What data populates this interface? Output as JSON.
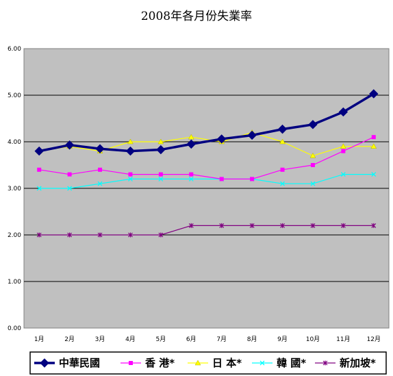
{
  "chart_data": {
    "type": "line",
    "title": "2008年各月份失業率",
    "xlabel": "",
    "ylabel": "",
    "categories": [
      "1月",
      "2月",
      "3月",
      "4月",
      "5月",
      "6月",
      "7月",
      "8月",
      "9月",
      "10月",
      "11月",
      "12月"
    ],
    "ylim": [
      0,
      6
    ],
    "yticks": [
      "0.00",
      "1.00",
      "2.00",
      "3.00",
      "4.00",
      "5.00",
      "6.00"
    ],
    "grid": true,
    "legend_position": "bottom",
    "series": [
      {
        "name": "中華民國",
        "color": "#000080",
        "marker": "diamond",
        "values": [
          3.8,
          3.93,
          3.85,
          3.8,
          3.83,
          3.95,
          4.06,
          4.14,
          4.27,
          4.37,
          4.64,
          5.03
        ]
      },
      {
        "name": "香 港*",
        "color": "#ff00ff",
        "marker": "square",
        "values": [
          3.4,
          3.3,
          3.4,
          3.3,
          3.3,
          3.3,
          3.2,
          3.2,
          3.4,
          3.5,
          3.8,
          4.1
        ]
      },
      {
        "name": "日 本*",
        "color": "#ffff00",
        "marker": "triangle",
        "values": [
          3.8,
          3.9,
          3.8,
          4.0,
          4.0,
          4.1,
          4.0,
          4.2,
          4.0,
          3.7,
          3.9,
          3.9
        ]
      },
      {
        "name": "韓 國*",
        "color": "#00ffff",
        "marker": "x",
        "values": [
          3.0,
          3.0,
          3.1,
          3.2,
          3.2,
          3.2,
          3.2,
          3.2,
          3.1,
          3.1,
          3.3,
          3.3
        ]
      },
      {
        "name": "新加坡*",
        "color": "#800080",
        "marker": "star",
        "values": [
          2.0,
          2.0,
          2.0,
          2.0,
          2.0,
          2.2,
          2.2,
          2.2,
          2.2,
          2.2,
          2.2,
          2.2
        ]
      }
    ]
  }
}
